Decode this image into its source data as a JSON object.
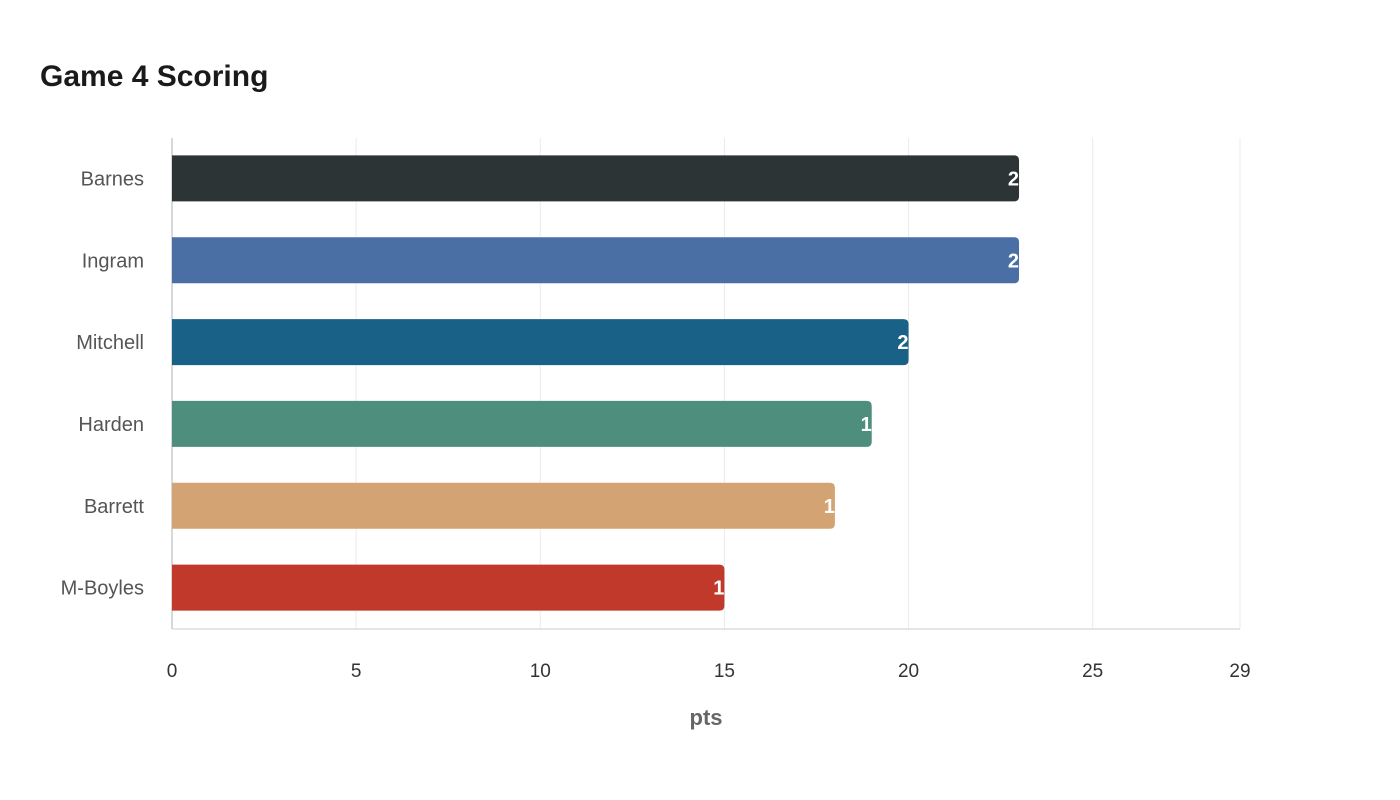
{
  "chart_data": {
    "type": "bar",
    "orientation": "horizontal",
    "title": "Game 4 Scoring",
    "xlabel": "pts",
    "ylabel": "",
    "categories": [
      "Barnes",
      "Ingram",
      "Mitchell",
      "Harden",
      "Barrett",
      "M-Boyles"
    ],
    "values": [
      23,
      23,
      20,
      19,
      18,
      15
    ],
    "colors": [
      "#2d3436",
      "#4a6fa5",
      "#1a6188",
      "#4e8e7c",
      "#d4a373",
      "#c0392b"
    ],
    "xlim": [
      0,
      29
    ],
    "xticks": [
      0,
      5,
      10,
      15,
      20,
      25,
      29
    ],
    "grid": true,
    "value_labels": true
  }
}
